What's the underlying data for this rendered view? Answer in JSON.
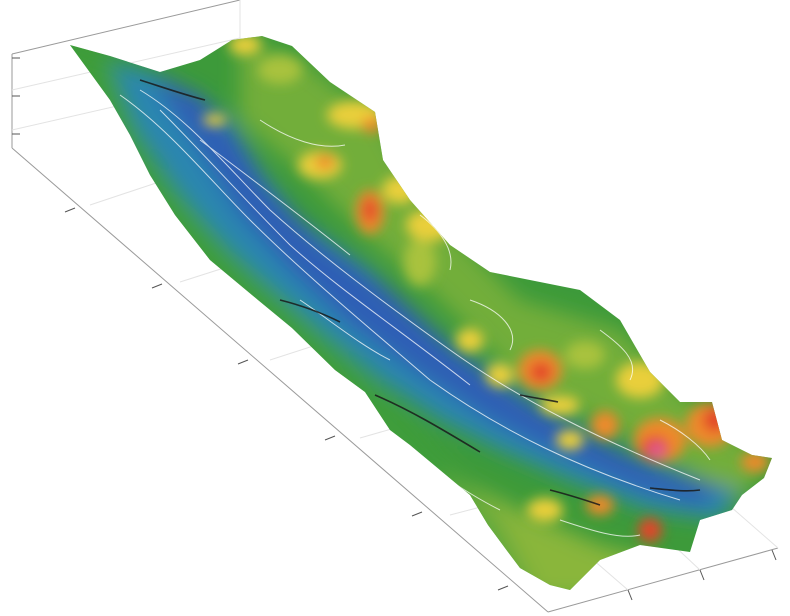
{
  "chart_data": {
    "type": "surface",
    "view": "3d-perspective",
    "colormap": [
      {
        "name": "blue",
        "color": "#2f5fb5"
      },
      {
        "name": "mid-blue",
        "color": "#2b86b0"
      },
      {
        "name": "green",
        "color": "#3d9a3a"
      },
      {
        "name": "yellow-green",
        "color": "#a9c23d"
      },
      {
        "name": "yellow",
        "color": "#e9cf3a"
      },
      {
        "name": "orange",
        "color": "#ee8a2a"
      },
      {
        "name": "red",
        "color": "#e2452a"
      },
      {
        "name": "magenta",
        "color": "#df5e9c"
      }
    ],
    "contour_lines": "white",
    "fault_lines": "black",
    "grid": true,
    "tick_labels": false,
    "axes": [
      "x",
      "y",
      "z"
    ],
    "title": "",
    "xlabel": "",
    "ylabel": "",
    "zlabel": "",
    "hotspot_colors": [
      "orange",
      "red",
      "red",
      "red",
      "magenta",
      "orange",
      "yellow",
      "orange"
    ]
  }
}
